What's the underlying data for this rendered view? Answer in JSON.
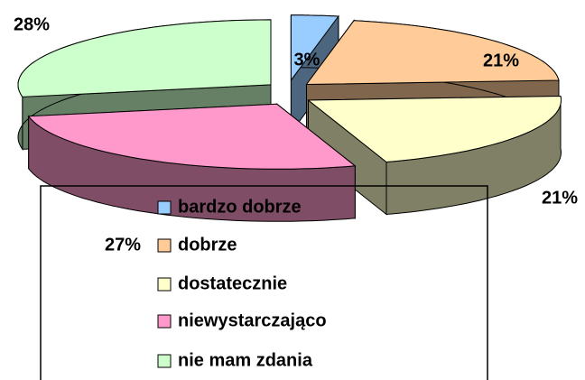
{
  "chart_data": {
    "type": "pie",
    "categories": [
      "bardzo dobrze",
      "dobrze",
      "dostatecznie",
      "niewystarczająco",
      "nie mam zdania"
    ],
    "values": [
      3,
      21,
      21,
      27,
      28
    ],
    "value_labels": [
      "3%",
      "21%",
      "21%",
      "27%",
      "28%"
    ],
    "colors": [
      "#99ccff",
      "#ffcc99",
      "#ffffcc",
      "#ff99cc",
      "#ccffcc"
    ],
    "legend": "bottom"
  }
}
